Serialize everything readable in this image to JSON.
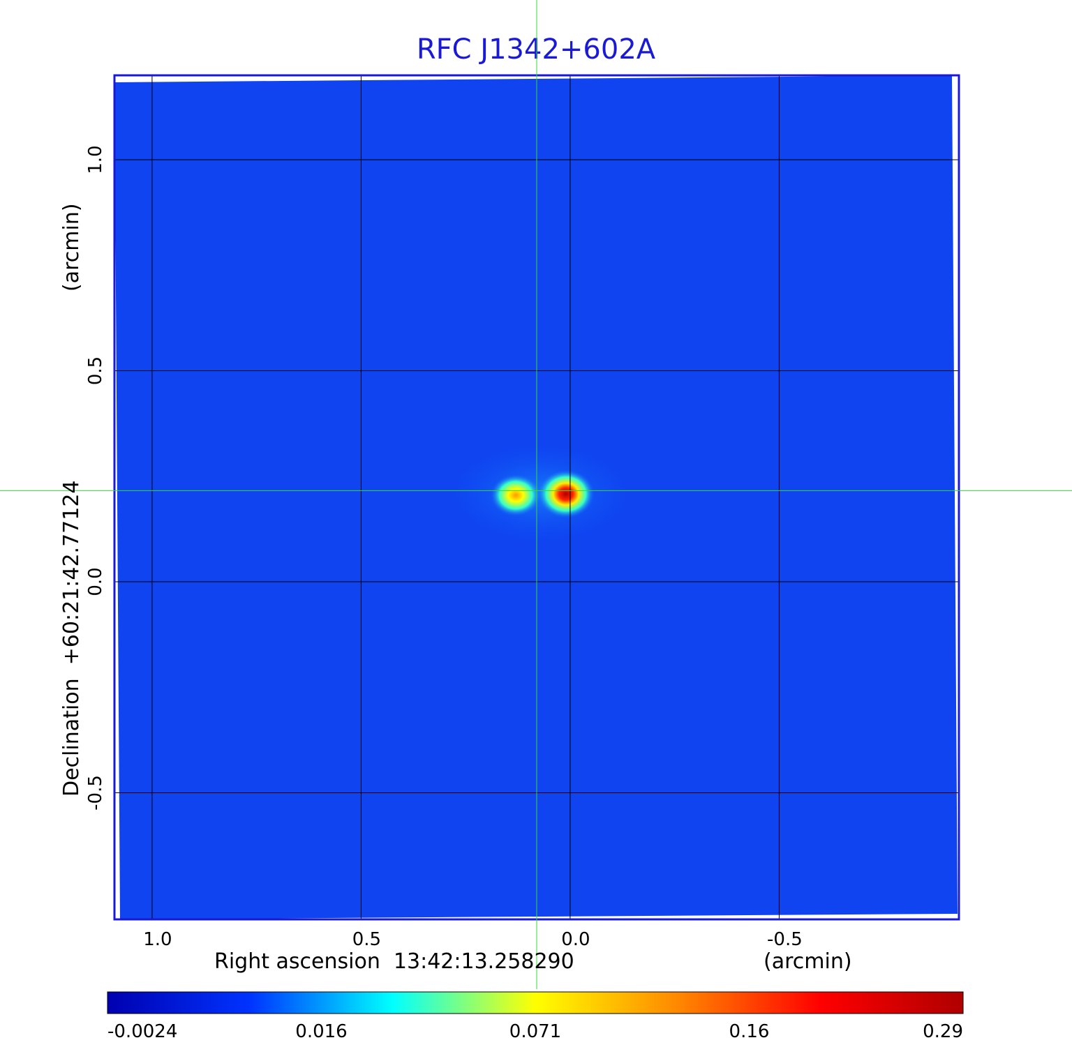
{
  "chart_data": {
    "type": "heatmap",
    "title": "RFC J1342+602A",
    "xlabel": "Right ascension  13:42:13.258290",
    "xunit": "(arcmin)",
    "ylabel": "Declination  +60:21:42.77124",
    "yunit": "(arcmin)",
    "xlim": [
      1.09,
      -0.93
    ],
    "ylim": [
      -0.8,
      1.2
    ],
    "x_ticks": [
      {
        "value": 1.0,
        "label": "1.0"
      },
      {
        "value": 0.5,
        "label": "0.5"
      },
      {
        "value": 0.0,
        "label": "0.0"
      },
      {
        "value": -0.5,
        "label": "-0.5"
      }
    ],
    "y_ticks": [
      {
        "value": 1.0,
        "label": "1.0"
      },
      {
        "value": 0.5,
        "label": "0.5"
      },
      {
        "value": 0.0,
        "label": "0.0"
      },
      {
        "value": -0.5,
        "label": "-0.5"
      }
    ],
    "grid": true,
    "crosshair": {
      "x": 0.08,
      "y": 0.216
    },
    "sources": [
      {
        "x": 0.13,
        "y": 0.205,
        "peak": 0.14
      },
      {
        "x": 0.01,
        "y": 0.208,
        "peak": 0.29
      }
    ],
    "colorbar": {
      "position": "bottom",
      "ticks": [
        {
          "frac": 0.0,
          "label": "-0.0024"
        },
        {
          "frac": 0.25,
          "label": "0.016"
        },
        {
          "frac": 0.5,
          "label": "0.071"
        },
        {
          "frac": 0.75,
          "label": "0.16"
        },
        {
          "frac": 1.0,
          "label": "0.29"
        }
      ],
      "colormap": [
        "#0000b0",
        "#0033ff",
        "#00ffff",
        "#ffff00",
        "#ff8800",
        "#ff0000",
        "#b00000"
      ]
    },
    "colors": {
      "frame": "#1a1ad6",
      "background_field": "#0f44f0",
      "grid": "#000000",
      "crosshair": "#33dd33"
    }
  }
}
